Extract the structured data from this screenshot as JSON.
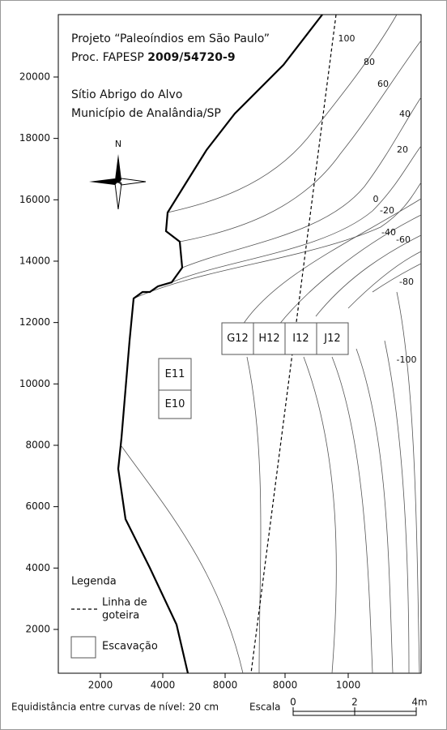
{
  "header": {
    "line1": "Projeto “Paleoíndios em São Paulo”",
    "line2a": "Proc. FAPESP ",
    "line2b": "2009/54720-9",
    "line3": "Sítio Abrigo do Alvo",
    "line4": "Município de Analândia/SP"
  },
  "north": "N",
  "y_axis": [
    2000,
    4000,
    6000,
    8000,
    10000,
    12000,
    14000,
    16000,
    18000,
    20000
  ],
  "x_axis": [
    2000,
    4000,
    8000,
    8000,
    1000
  ],
  "contour_labels": [
    100,
    80,
    60,
    40,
    20,
    0,
    -20,
    -40,
    -60,
    -80,
    -100
  ],
  "squares": [
    "G12",
    "H12",
    "I12",
    "J12",
    "E11",
    "E10"
  ],
  "legend": {
    "title": "Legenda",
    "line_label_1": "Linha de",
    "line_label_2": "goteira",
    "square_label": "Escavação"
  },
  "footer": "Equidistância entre curvas de nível: 20 cm",
  "scale": {
    "title": "Escala",
    "ticks": [
      "0",
      "2",
      "4m"
    ]
  }
}
